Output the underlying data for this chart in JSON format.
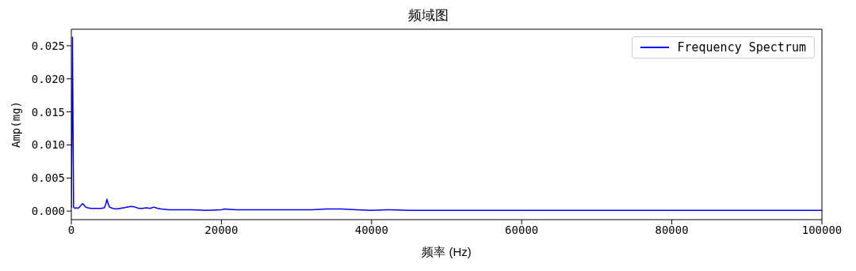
{
  "chart_data": {
    "type": "line",
    "title": "频域图",
    "xlabel": "频率 (Hz)",
    "ylabel": "Amp(mg)",
    "x": [
      0,
      150,
      300,
      500,
      700,
      900,
      1100,
      1300,
      1500,
      1700,
      1900,
      2200,
      2600,
      3000,
      3500,
      4000,
      4400,
      4600,
      4750,
      4900,
      5100,
      5500,
      6000,
      6500,
      7000,
      7500,
      8000,
      8500,
      9000,
      9500,
      10000,
      10500,
      11000,
      11500,
      12000,
      13000,
      14000,
      16000,
      18000,
      20000,
      20300,
      22000,
      25000,
      28000,
      30000,
      32000,
      34000,
      35000,
      36000,
      38000,
      40000,
      42000,
      42500,
      45000,
      50000,
      55000,
      60000,
      65000,
      70000,
      75000,
      80000,
      85000,
      90000,
      95000,
      100000
    ],
    "series": [
      {
        "name": "Frequency Spectrum",
        "color": "#0000ff",
        "values": [
          0.0005,
          0.0263,
          0.0006,
          0.0004,
          0.0005,
          0.0004,
          0.0006,
          0.0009,
          0.0011,
          0.0009,
          0.0006,
          0.0005,
          0.0004,
          0.0004,
          0.0004,
          0.0004,
          0.0005,
          0.0011,
          0.0018,
          0.0011,
          0.0006,
          0.0004,
          0.0003,
          0.0004,
          0.0005,
          0.0006,
          0.0007,
          0.0006,
          0.0004,
          0.0004,
          0.0005,
          0.0004,
          0.0006,
          0.0004,
          0.0003,
          0.0002,
          0.0002,
          0.0002,
          0.0001,
          0.0002,
          0.0003,
          0.0002,
          0.0002,
          0.0002,
          0.0002,
          0.0002,
          0.0003,
          0.0003,
          0.0003,
          0.0002,
          0.0001,
          0.0002,
          0.0002,
          0.0001,
          0.0001,
          0.0001,
          0.0001,
          0.0001,
          0.0001,
          0.0001,
          0.0001,
          0.0001,
          0.0001,
          0.0001,
          0.0001
        ]
      }
    ],
    "xlim": [
      0,
      100000
    ],
    "xticks": [
      0,
      20000,
      40000,
      60000,
      80000,
      100000
    ],
    "ylim": [
      -0.0013,
      0.0275
    ],
    "yticks": [
      {
        "value": 0,
        "label": "0.000"
      },
      {
        "value": 0.005,
        "label": "0.005"
      },
      {
        "value": 0.01,
        "label": "0.010"
      },
      {
        "value": 0.015,
        "label": "0.015"
      },
      {
        "value": 0.02,
        "label": "0.020"
      },
      {
        "value": 0.025,
        "label": "0.025"
      }
    ],
    "legend": "top right",
    "grid": false,
    "marker": "none",
    "line_style": "solid"
  }
}
